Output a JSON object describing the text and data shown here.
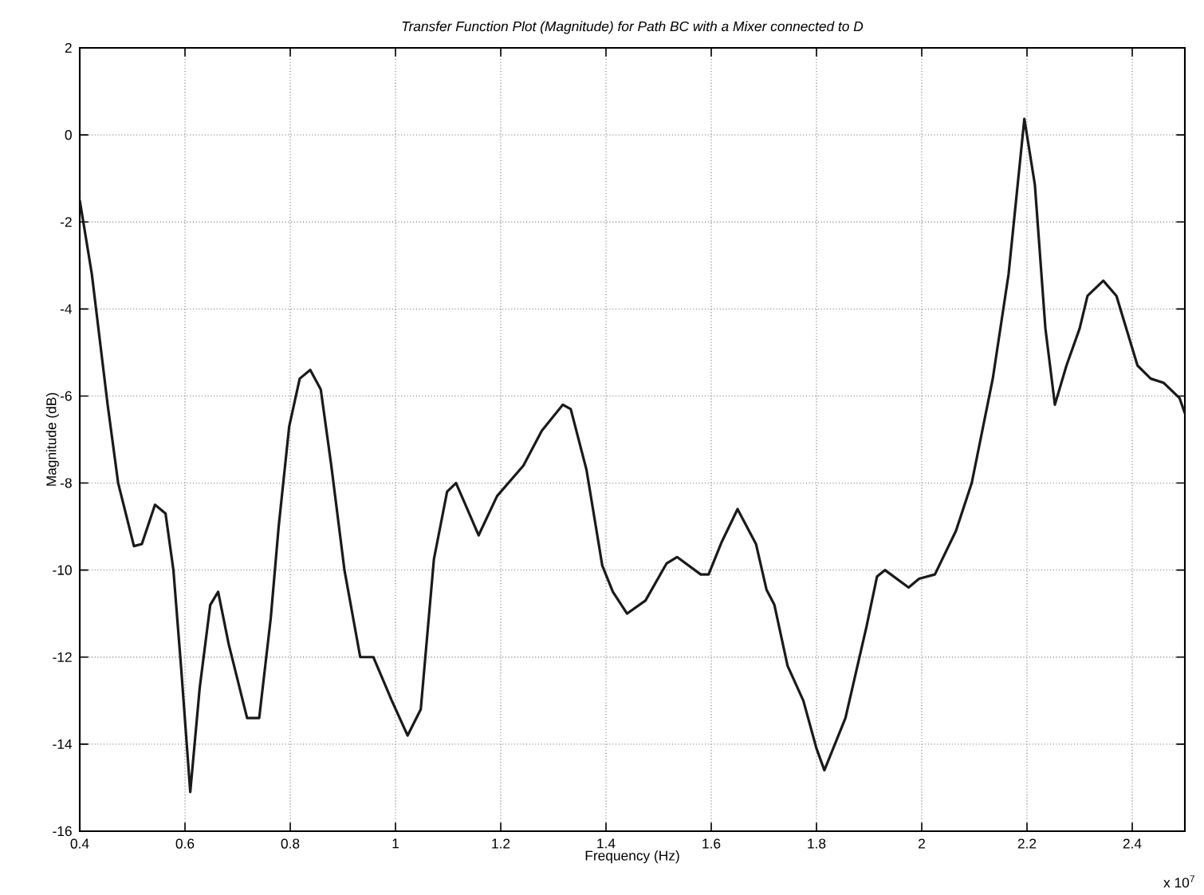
{
  "chart_data": {
    "type": "line",
    "title": "Transfer Function Plot (Magnitude) for Path BC with a Mixer connected to D",
    "xlabel": "Frequency (Hz)",
    "ylabel": "Magnitude (dB)",
    "annotations": [
      "x 10$^{7}$"
    ],
    "xlim": [
      0.4,
      2.5
    ],
    "ylim": [
      -16,
      2
    ],
    "xticks": [
      0.4,
      0.6,
      0.8,
      1,
      1.2,
      1.4,
      1.6,
      1.8,
      2,
      2.2,
      2.4
    ],
    "yticks": [
      -16,
      -14,
      -12,
      -10,
      -8,
      -6,
      -4,
      -2,
      0,
      2
    ],
    "grid": true,
    "marker": "none",
    "line_style": "solid",
    "series": [
      {
        "color": "#1a1a1a",
        "x": [
          0.4,
          0.423,
          0.453,
          0.473,
          0.503,
          0.518,
          0.543,
          0.563,
          0.578,
          0.593,
          0.61,
          0.628,
          0.648,
          0.663,
          0.683,
          0.718,
          0.741,
          0.763,
          0.778,
          0.798,
          0.818,
          0.838,
          0.858,
          0.878,
          0.903,
          0.933,
          0.958,
          0.993,
          1.023,
          1.048,
          1.073,
          1.098,
          1.115,
          1.133,
          1.158,
          1.193,
          1.243,
          1.278,
          1.318,
          1.333,
          1.363,
          1.393,
          1.413,
          1.44,
          1.475,
          1.515,
          1.535,
          1.58,
          1.595,
          1.62,
          1.65,
          1.685,
          1.705,
          1.72,
          1.745,
          1.775,
          1.8,
          1.815,
          1.855,
          1.895,
          1.915,
          1.93,
          1.975,
          1.995,
          2.025,
          2.065,
          2.095,
          2.135,
          2.165,
          2.195,
          2.215,
          2.235,
          2.253,
          2.275,
          2.3,
          2.315,
          2.345,
          2.37,
          2.41,
          2.435,
          2.46,
          2.49,
          2.5
        ],
        "values": [
          -1.5,
          -3.2,
          -6.2,
          -8.0,
          -9.45,
          -9.4,
          -8.5,
          -8.7,
          -10.0,
          -12.3,
          -15.1,
          -12.7,
          -10.8,
          -10.5,
          -11.7,
          -13.4,
          -13.4,
          -11.1,
          -9.0,
          -6.7,
          -5.6,
          -5.4,
          -5.85,
          -7.6,
          -10.0,
          -12.0,
          -12.0,
          -13.0,
          -13.8,
          -13.2,
          -9.75,
          -8.2,
          -8.0,
          -8.5,
          -9.2,
          -8.3,
          -7.6,
          -6.8,
          -6.2,
          -6.3,
          -7.7,
          -9.9,
          -10.5,
          -11.0,
          -10.7,
          -9.85,
          -9.7,
          -10.1,
          -10.1,
          -9.35,
          -8.6,
          -9.4,
          -10.45,
          -10.8,
          -12.2,
          -13.0,
          -14.1,
          -14.6,
          -13.4,
          -11.3,
          -10.15,
          -10.0,
          -10.4,
          -10.2,
          -10.1,
          -9.1,
          -8.0,
          -5.6,
          -3.2,
          0.37,
          -1.15,
          -4.45,
          -6.2,
          -5.3,
          -4.45,
          -3.7,
          -3.35,
          -3.7,
          -5.3,
          -5.6,
          -5.7,
          -6.05,
          -6.4
        ]
      }
    ]
  }
}
